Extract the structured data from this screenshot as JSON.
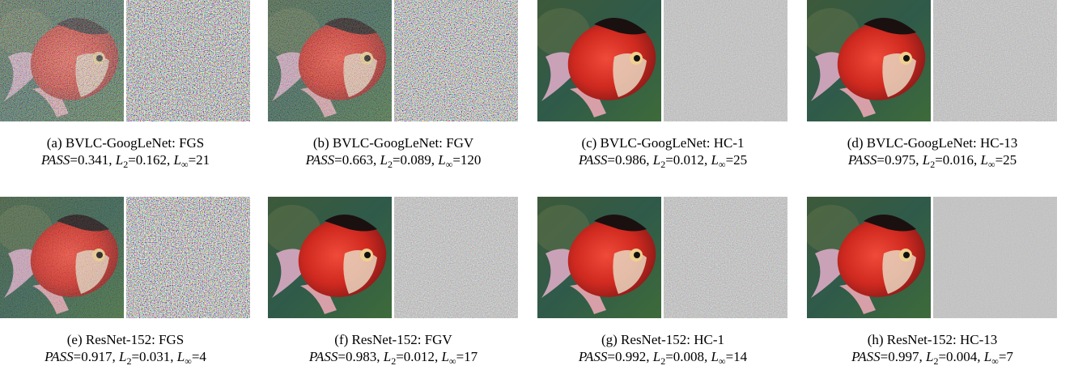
{
  "panels": [
    {
      "caption": "(a) BVLC-GoogLeNet: FGS",
      "metrics": [
        {
          "text": "PASS",
          "value": 0.341
        },
        {
          "text": "L",
          "sub": "2",
          "value": 0.162
        },
        {
          "text": "L",
          "sub": "∞",
          "value": 21
        }
      ]
    },
    {
      "caption": "(b) BVLC-GoogLeNet: FGV",
      "metrics": [
        {
          "text": "PASS",
          "value": 0.663
        },
        {
          "text": "L",
          "sub": "2",
          "value": 0.089
        },
        {
          "text": "L",
          "sub": "∞",
          "value": 120
        }
      ]
    },
    {
      "caption": "(c) BVLC-GoogLeNet: HC-1",
      "metrics": [
        {
          "text": "PASS",
          "value": 0.986
        },
        {
          "text": "L",
          "sub": "2",
          "value": 0.012
        },
        {
          "text": "L",
          "sub": "∞",
          "value": 25
        }
      ]
    },
    {
      "caption": "(d) BVLC-GoogLeNet: HC-13",
      "metrics": [
        {
          "text": "PASS",
          "value": 0.975
        },
        {
          "text": "L",
          "sub": "2",
          "value": 0.016
        },
        {
          "text": "L",
          "sub": "∞",
          "value": 25
        }
      ]
    },
    {
      "caption": "(e) ResNet-152: FGS",
      "metrics": [
        {
          "text": "PASS",
          "value": 0.917
        },
        {
          "text": "L",
          "sub": "2",
          "value": 0.031
        },
        {
          "text": "L",
          "sub": "∞",
          "value": 4
        }
      ]
    },
    {
      "caption": "(f) ResNet-152: FGV",
      "metrics": [
        {
          "text": "PASS",
          "value": 0.983
        },
        {
          "text": "L",
          "sub": "2",
          "value": 0.012
        },
        {
          "text": "L",
          "sub": "∞",
          "value": 17
        }
      ]
    },
    {
      "caption": "(g) ResNet-152: HC-1",
      "metrics": [
        {
          "text": "PASS",
          "value": 0.992
        },
        {
          "text": "L",
          "sub": "2",
          "value": 0.008
        },
        {
          "text": "L",
          "sub": "∞",
          "value": 14
        }
      ]
    },
    {
      "caption": "(h) ResNet-152: HC-13",
      "metrics": [
        {
          "text": "PASS",
          "value": 0.997
        },
        {
          "text": "L",
          "sub": "2",
          "value": 0.004
        },
        {
          "text": "L",
          "sub": "∞",
          "value": 7
        }
      ]
    }
  ]
}
